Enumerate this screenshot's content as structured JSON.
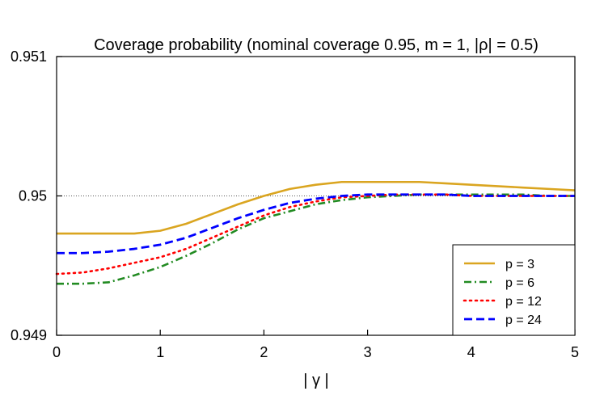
{
  "chart_data": {
    "type": "line",
    "title": "Coverage probability (nominal coverage 0.95, m = 1, |ρ| = 0.5)",
    "xlabel": "| γ |",
    "ylabel": "",
    "xlim": [
      0,
      5
    ],
    "ylim": [
      0.949,
      0.951
    ],
    "xticks": [
      0,
      1,
      2,
      3,
      4,
      5
    ],
    "yticks": [
      0.949,
      0.95,
      0.951
    ],
    "xtick_labels": [
      "0",
      "1",
      "2",
      "3",
      "4",
      "5"
    ],
    "ytick_labels": [
      "0.949",
      "0.95",
      "0.951"
    ],
    "reference_line": {
      "y": 0.95,
      "style": "dotted"
    },
    "legend_position": "bottom-right",
    "grid": false,
    "x": [
      0,
      0.25,
      0.5,
      0.75,
      1.0,
      1.25,
      1.5,
      1.75,
      2.0,
      2.25,
      2.5,
      2.75,
      3.0,
      3.25,
      3.5,
      3.75,
      4.0,
      4.25,
      4.5,
      4.75,
      5.0
    ],
    "series": [
      {
        "name": "p = 3",
        "color": "#DAA520",
        "style": "solid",
        "values": [
          0.94973,
          0.94973,
          0.94973,
          0.94973,
          0.94975,
          0.9498,
          0.94987,
          0.94994,
          0.95,
          0.95005,
          0.95008,
          0.9501,
          0.9501,
          0.9501,
          0.9501,
          0.95009,
          0.95008,
          0.95007,
          0.95006,
          0.95005,
          0.95004
        ]
      },
      {
        "name": "p = 6",
        "color": "#228B22",
        "style": "dashdot",
        "values": [
          0.94937,
          0.94937,
          0.94938,
          0.94943,
          0.94949,
          0.94957,
          0.94966,
          0.94976,
          0.94984,
          0.94989,
          0.94994,
          0.94997,
          0.94999,
          0.95,
          0.95001,
          0.95001,
          0.95001,
          0.95001,
          0.95001,
          0.95,
          0.95
        ]
      },
      {
        "name": "p = 12",
        "color": "#FF0000",
        "style": "dotted",
        "values": [
          0.94944,
          0.94945,
          0.94948,
          0.94952,
          0.94956,
          0.94962,
          0.9497,
          0.94978,
          0.94986,
          0.94992,
          0.94996,
          0.94999,
          0.95,
          0.95001,
          0.95001,
          0.95001,
          0.95,
          0.95,
          0.95,
          0.95,
          0.95
        ]
      },
      {
        "name": "p = 24",
        "color": "#0000FF",
        "style": "dashed",
        "values": [
          0.94959,
          0.94959,
          0.9496,
          0.94962,
          0.94965,
          0.9497,
          0.94977,
          0.94984,
          0.9499,
          0.94995,
          0.94998,
          0.95,
          0.95001,
          0.95001,
          0.95001,
          0.95001,
          0.95,
          0.95,
          0.95,
          0.95,
          0.95
        ]
      }
    ]
  }
}
